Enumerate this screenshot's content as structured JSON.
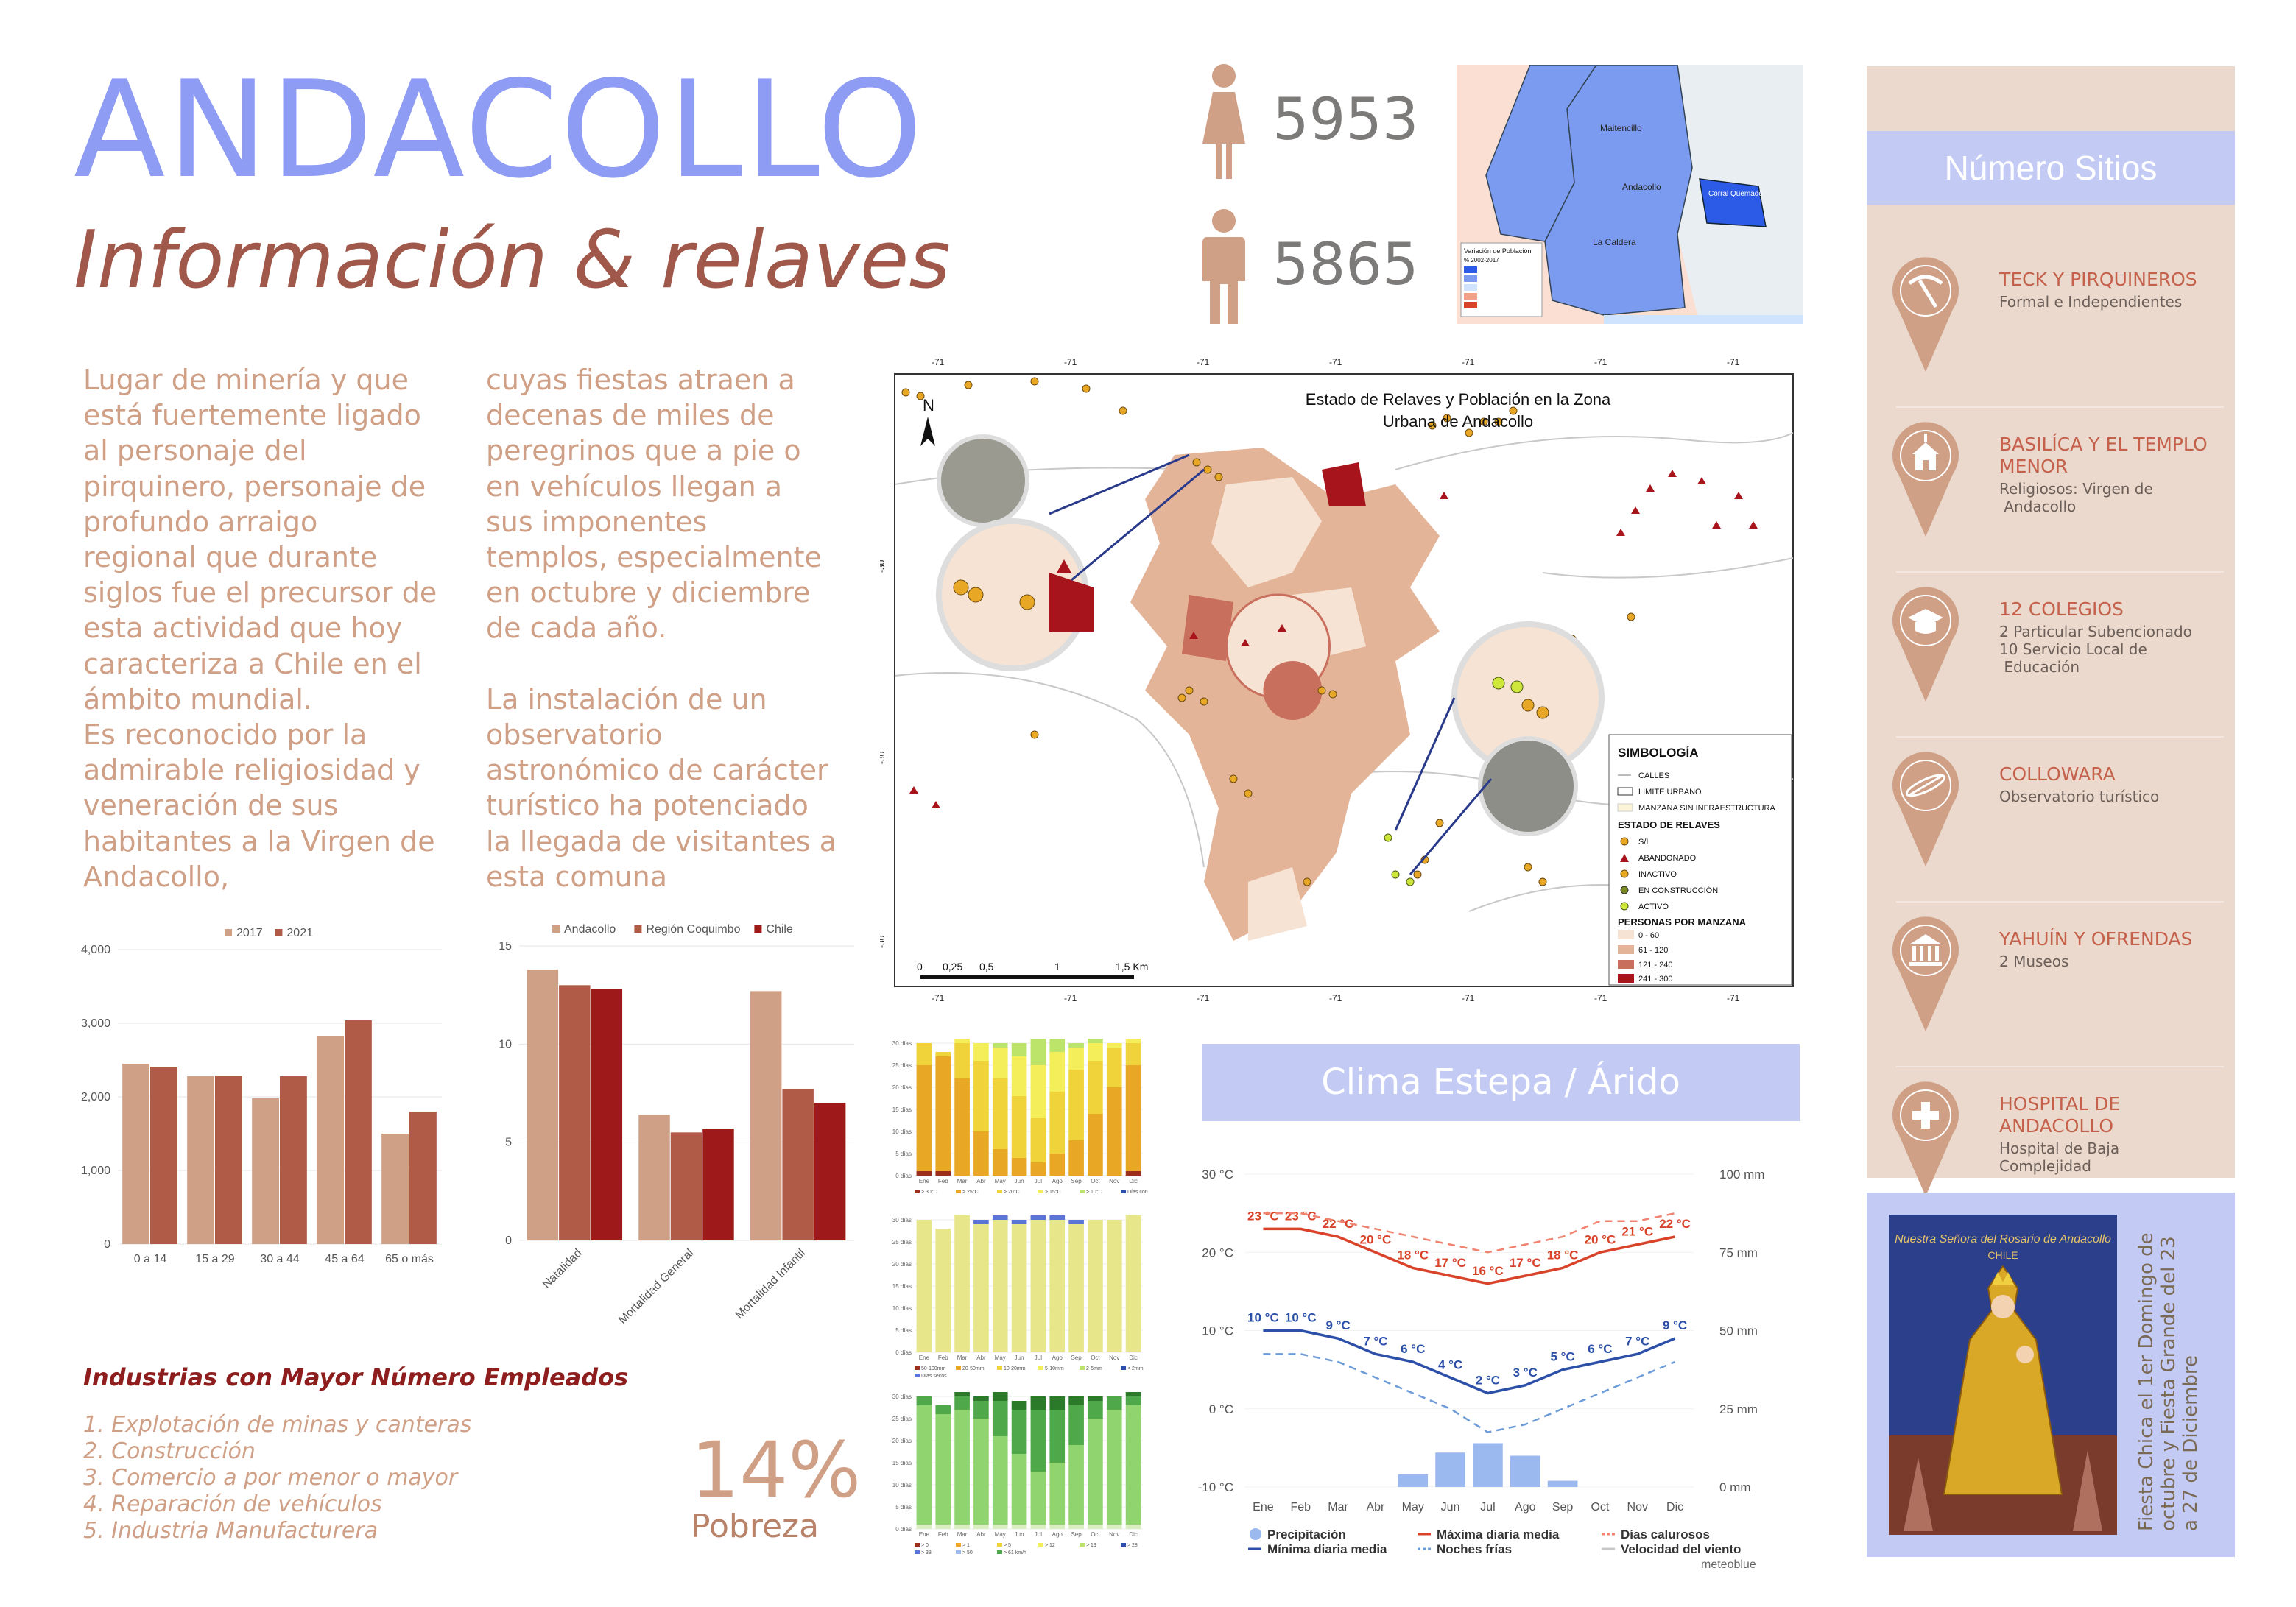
{
  "title": "ANDACOLLO",
  "subtitle": "Información & relaves",
  "paragraph_left": "Lugar de minería y que\nestá fuertemente ligado\nal personaje del\npirquinero, personaje de\nprofundo arraigo\nregional que durante\nsiglos fue el precursor de\nesta actividad que hoy\ncaracteriza a Chile en el\námbito mundial.\nEs reconocido por la\nadmirable religiosidad y\nveneración de sus\nhabitantes a la Virgen de\nAndacollo,",
  "paragraph_right": "cuyas fiestas atraen a\ndecenas de miles de\nperegrinos que a pie o\nen vehículos llegan a\nsus imponentes\ntemplos, especialmente\nen octubre y diciembre\nde cada año.\n\nLa instalación de un\nobservatorio\nastronómico de carácter\nturístico ha potenciado\nla llegada de visitantes a\nesta comuna",
  "population": {
    "female": "5953",
    "male": "5865",
    "female_color": "#cf9f86",
    "male_color": "#cf9f86"
  },
  "region_map": {
    "labels": [
      "Maitencillo",
      "Andacollo",
      "Corral Quemado",
      "La Caldera"
    ],
    "legend_title": "Variación de Población",
    "legend_sub": "% 2002-2017"
  },
  "town_map": {
    "title_line1": "Estado de Relaves y Población en la Zona",
    "title_line2": "Urbana de Andacollo",
    "north": "N",
    "scale_labels": [
      "0",
      "0,25",
      "0,5",
      "1",
      "1,5 Km"
    ],
    "top_ticks": [
      "-71",
      "-71",
      "-71",
      "-71",
      "-71",
      "-71",
      "-71"
    ],
    "side_ticks": [
      "-30",
      "-30",
      "-30"
    ],
    "legend": {
      "heading": "SIMBOLOGÍA",
      "items": [
        "CALLES",
        "LIMITE URBANO",
        "MANZANA SIN INFRAESTRUCTURA"
      ],
      "relaves_heading": "ESTADO DE RELAVES",
      "relaves": [
        "S/I",
        "ABANDONADO",
        "INACTIVO",
        "EN CONSTRUCCIÓN",
        "ACTIVO"
      ],
      "personas_heading": "PERSONAS POR MANZANA",
      "personas": [
        "0 - 60",
        "61 - 120",
        "121 - 240",
        "241 - 300"
      ]
    },
    "colors": {
      "low": "#f6e3d3",
      "mid": "#e4b499",
      "high": "#c86f5e",
      "top": "#a7141b"
    }
  },
  "sites": {
    "heading": "Número Sitios",
    "items": [
      {
        "title": "TECK Y PIRQUINEROS",
        "desc": "Formal e Independientes",
        "icon": "pickaxe-icon"
      },
      {
        "title": "BASILÍCA Y EL TEMPLO\nMENOR",
        "desc": "Religiosos: Virgen de\n Andacollo",
        "icon": "church-icon"
      },
      {
        "title": "12 COLEGIOS",
        "desc": "2 Particular Subencionado\n10 Servicio Local de\n Educación",
        "icon": "graduation-cap-icon"
      },
      {
        "title": "COLLOWARA",
        "desc": "Observatorio turístico",
        "icon": "telescope-icon"
      },
      {
        "title": "YAHUÍN Y OFRENDAS",
        "desc": "2 Museos",
        "icon": "museum-icon"
      },
      {
        "title": "HOSPITAL DE\nANDACOLLO",
        "desc": "Hospital de Baja\nComplejidad",
        "icon": "medical-cross-icon"
      }
    ],
    "pin_color": "#cf9f86"
  },
  "clima": {
    "heading": "Clima Estepa / Árido"
  },
  "industries": {
    "heading": "Industrias con Mayor Número Empleados",
    "items": [
      "1. Explotación de minas y canteras",
      "2. Construcción",
      "3. Comercio a por menor o mayor",
      "4. Reparación de vehículos",
      "5. Industria Manufacturera"
    ]
  },
  "poverty": {
    "value": "14%",
    "label": "Pobreza"
  },
  "virgin": {
    "caption": "Fiesta Chica el 1er Domingo de octubre y Fiesta Grande del 23 a 27 de Diciembre",
    "image_text": "Nuestra Señora del Rosario de Andacollo",
    "image_sub": "CHILE"
  },
  "chart_data": [
    {
      "type": "bar",
      "categories": [
        "0 a 14",
        "15 a 29",
        "30 a 44",
        "45 a 64",
        "65 o más"
      ],
      "series": [
        {
          "name": "2017",
          "values": [
            2450,
            2280,
            1980,
            2820,
            1500
          ],
          "color": "#cf9f86"
        },
        {
          "name": "2021",
          "values": [
            2410,
            2290,
            2280,
            3040,
            1800
          ],
          "color": "#b05a48"
        }
      ],
      "ylim": [
        0,
        4000
      ],
      "yticks": [
        "0",
        "1,000",
        "2,000",
        "3,000",
        "4,000"
      ],
      "legend": "top"
    },
    {
      "type": "bar",
      "categories": [
        "Natalidad",
        "Mortalidad General",
        "Mortalidad Infantil"
      ],
      "series": [
        {
          "name": "Andacollo",
          "values": [
            13.8,
            6.4,
            12.7
          ],
          "color": "#cf9f86"
        },
        {
          "name": "Región Coquimbo",
          "values": [
            13.0,
            5.5,
            7.7
          ],
          "color": "#b05a48"
        },
        {
          "name": "Chile",
          "values": [
            12.8,
            5.7,
            7.0
          ],
          "color": "#9e1a1a"
        }
      ],
      "ylim": [
        0,
        15
      ],
      "yticks": [
        "0",
        "5",
        "10",
        "15"
      ],
      "legend": "top"
    },
    {
      "type": "bar",
      "stacked": true,
      "categories": [
        "Ene",
        "Feb",
        "Mar",
        "Abr",
        "May",
        "Jun",
        "Jul",
        "Ago",
        "Sep",
        "Oct",
        "Nov",
        "Dic"
      ],
      "series": [
        {
          "name": "> 30°C",
          "values": [
            1,
            1,
            0,
            0,
            0,
            0,
            0,
            0,
            0,
            0,
            0,
            1
          ],
          "color": "#9b2e1c"
        },
        {
          "name": "> 25°C",
          "values": [
            24,
            26,
            22,
            10,
            6,
            4,
            3,
            5,
            8,
            14,
            20,
            24
          ],
          "color": "#e8a826"
        },
        {
          "name": "> 20°C",
          "values": [
            5,
            1,
            8,
            16,
            16,
            14,
            10,
            14,
            16,
            12,
            9,
            5
          ],
          "color": "#f0d33a"
        },
        {
          "name": "> 15°C",
          "values": [
            0,
            0,
            1,
            4,
            7,
            9,
            12,
            9,
            5,
            4,
            1,
            1
          ],
          "color": "#f4ee5a"
        },
        {
          "name": "> 10°C",
          "values": [
            0,
            0,
            0,
            0,
            1,
            3,
            6,
            3,
            1,
            1,
            0,
            0
          ],
          "color": "#bde46a"
        }
      ],
      "ylim": [
        0,
        30
      ],
      "yticks": [
        "0 días",
        "5 días",
        "10 días",
        "15 días",
        "20 días",
        "25 días",
        "30 días"
      ],
      "legend_labels": [
        "> 30°C",
        "> 25°C",
        "> 20°C",
        "> 15°C",
        "> 10°C",
        "Días con heladas"
      ]
    },
    {
      "type": "bar",
      "stacked": true,
      "categories": [
        "Ene",
        "Feb",
        "Mar",
        "Abr",
        "May",
        "Jun",
        "Jul",
        "Ago",
        "Sep",
        "Oct",
        "Nov",
        "Dic"
      ],
      "series": [
        {
          "name": "Días secos",
          "values": [
            30,
            28,
            31,
            29,
            30,
            29,
            30,
            30,
            29,
            30,
            30,
            31
          ],
          "color": "#e7e68a"
        },
        {
          "name": "2-5mm",
          "values": [
            0,
            0,
            0,
            1,
            1,
            1,
            1,
            1,
            1,
            0,
            0,
            0
          ],
          "color": "#5c74d6"
        }
      ],
      "ylim": [
        0,
        30
      ],
      "yticks": [
        "0 días",
        "5 días",
        "10 días",
        "15 días",
        "20 días",
        "25 días",
        "30 días"
      ],
      "legend_labels": [
        "50-100mm",
        "20-50mm",
        "10-20mm",
        "5-10mm",
        "2-5mm",
        "< 2mm",
        "Días secos"
      ]
    },
    {
      "type": "bar",
      "stacked": true,
      "categories": [
        "Ene",
        "Feb",
        "Mar",
        "Abr",
        "May",
        "Jun",
        "Jul",
        "Ago",
        "Sep",
        "Oct",
        "Nov",
        "Dic"
      ],
      "series": [
        {
          "name": "> 0",
          "values": [
            1,
            1,
            1,
            1,
            1,
            1,
            1,
            1,
            1,
            1,
            1,
            1
          ],
          "color": "#d9efc0"
        },
        {
          "name": "> 5",
          "values": [
            27,
            25,
            26,
            24,
            20,
            16,
            12,
            14,
            18,
            24,
            26,
            27
          ],
          "color": "#8fd46e"
        },
        {
          "name": "> 12",
          "values": [
            2,
            2,
            3,
            4,
            8,
            10,
            14,
            12,
            9,
            4,
            3,
            2
          ],
          "color": "#4fa84a"
        },
        {
          "name": "> 19",
          "values": [
            0,
            0,
            1,
            1,
            2,
            2,
            3,
            3,
            2,
            1,
            0,
            1
          ],
          "color": "#2a7a2a"
        }
      ],
      "ylim": [
        0,
        30
      ],
      "yticks": [
        "0 días",
        "5 días",
        "10 días",
        "15 días",
        "20 días",
        "25 días",
        "30 días"
      ],
      "legend_labels": [
        "> 0",
        "> 1",
        "> 5",
        "> 12",
        "> 19",
        "> 28",
        "> 38",
        "> 50",
        "> 61 km/h"
      ]
    },
    {
      "type": "line",
      "categories": [
        "Ene",
        "Feb",
        "Mar",
        "Abr",
        "May",
        "Jun",
        "Jul",
        "Ago",
        "Sep",
        "Oct",
        "Nov",
        "Dic"
      ],
      "series": [
        {
          "name": "Máxima diaria media",
          "values": [
            23,
            23,
            22,
            20,
            18,
            17,
            16,
            17,
            18,
            20,
            21,
            22
          ],
          "color": "#d8432a",
          "labels": [
            "23 °C",
            "23 °C",
            "22 °C",
            "20 °C",
            "18 °C",
            "17 °C",
            "16 °C",
            "17 °C",
            "18 °C",
            "20 °C",
            "21 °C",
            "22 °C"
          ]
        },
        {
          "name": "Mínima diaria media",
          "values": [
            10,
            10,
            9,
            7,
            6,
            4,
            2,
            3,
            5,
            6,
            7,
            9
          ],
          "color": "#2c4fa7",
          "labels": [
            "10 °C",
            "10 °C",
            "9 °C",
            "7 °C",
            "6 °C",
            "4 °C",
            "2 °C",
            "3 °C",
            "5 °C",
            "6 °C",
            "7 °C",
            "9 °C"
          ]
        },
        {
          "name": "Días calurosos",
          "values": [
            25,
            25,
            24,
            23,
            22,
            21,
            20,
            21,
            22,
            24,
            24,
            25
          ],
          "color": "#f08470",
          "dashed": true
        },
        {
          "name": "Noches frías",
          "values": [
            7,
            7,
            6,
            4,
            2,
            0,
            -3,
            -2,
            0,
            2,
            4,
            6
          ],
          "color": "#6c9bd8",
          "dashed": true
        }
      ],
      "bars": {
        "name": "Precipitación",
        "values": [
          0,
          0,
          0,
          0,
          4,
          11,
          14,
          10,
          2,
          0,
          0,
          0
        ],
        "color": "#9bb9ef"
      },
      "ylim": [
        -10,
        30
      ],
      "yticks": [
        "-10 °C",
        "0 °C",
        "10 °C",
        "20 °C",
        "30 °C"
      ],
      "y2ticks": [
        "0 mm",
        "25 mm",
        "50 mm",
        "75 mm",
        "100 mm"
      ],
      "legend_labels": [
        "Precipitación",
        "Máxima diaria media",
        "Días calurosos",
        "Mínima diaria media",
        "Noches frías",
        "Velocidad del viento"
      ],
      "source": "meteoblue"
    }
  ]
}
